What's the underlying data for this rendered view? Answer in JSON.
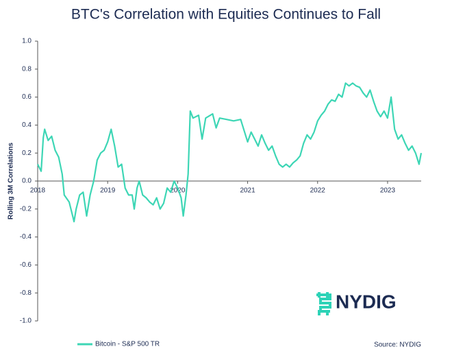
{
  "chart_data": {
    "type": "line",
    "title": "BTC's Correlation with Equities Continues to Fall",
    "y_label": "Rolling 3M Correlations",
    "source": "Source: NYDIG",
    "logo": "NYDIG",
    "x": [
      2018.0,
      2018.05,
      2018.08,
      2018.1,
      2018.15,
      2018.2,
      2018.25,
      2018.3,
      2018.35,
      2018.38,
      2018.45,
      2018.5,
      2018.52,
      2018.55,
      2018.6,
      2018.65,
      2018.7,
      2018.75,
      2018.8,
      2018.85,
      2018.9,
      2018.95,
      2019.0,
      2019.05,
      2019.1,
      2019.15,
      2019.2,
      2019.25,
      2019.3,
      2019.35,
      2019.38,
      2019.42,
      2019.45,
      2019.5,
      2019.55,
      2019.6,
      2019.65,
      2019.7,
      2019.75,
      2019.8,
      2019.85,
      2019.9,
      2019.95,
      2020.0,
      2020.05,
      2020.08,
      2020.12,
      2020.15,
      2020.18,
      2020.22,
      2020.3,
      2020.35,
      2020.4,
      2020.5,
      2020.55,
      2020.6,
      2020.7,
      2020.8,
      2020.9,
      2021.0,
      2021.05,
      2021.1,
      2021.15,
      2021.2,
      2021.25,
      2021.3,
      2021.35,
      2021.4,
      2021.45,
      2021.5,
      2021.55,
      2021.6,
      2021.65,
      2021.7,
      2021.75,
      2021.8,
      2021.85,
      2021.9,
      2021.95,
      2022.0,
      2022.05,
      2022.1,
      2022.15,
      2022.2,
      2022.25,
      2022.3,
      2022.35,
      2022.4,
      2022.45,
      2022.5,
      2022.55,
      2022.6,
      2022.65,
      2022.7,
      2022.75,
      2022.8,
      2022.85,
      2022.9,
      2022.95,
      2023.0,
      2023.05,
      2023.1,
      2023.15,
      2023.2,
      2023.25,
      2023.3,
      2023.35,
      2023.4,
      2023.45,
      2023.48
    ],
    "series": [
      {
        "name": "Bitcoin - S&P 500 TR",
        "color": "#3dd6b5",
        "values": [
          0.12,
          0.07,
          0.31,
          0.37,
          0.29,
          0.32,
          0.22,
          0.17,
          0.05,
          -0.1,
          -0.15,
          -0.25,
          -0.29,
          -0.2,
          -0.1,
          -0.08,
          -0.25,
          -0.1,
          0.0,
          0.15,
          0.2,
          0.22,
          0.28,
          0.37,
          0.25,
          0.1,
          0.12,
          -0.05,
          -0.1,
          -0.1,
          -0.2,
          -0.05,
          0.0,
          -0.1,
          -0.12,
          -0.15,
          -0.17,
          -0.12,
          -0.2,
          -0.16,
          -0.05,
          -0.08,
          0.0,
          -0.05,
          -0.12,
          -0.25,
          -0.1,
          0.05,
          0.5,
          0.45,
          0.47,
          0.3,
          0.45,
          0.48,
          0.38,
          0.45,
          0.44,
          0.43,
          0.44,
          0.28,
          0.35,
          0.3,
          0.25,
          0.33,
          0.27,
          0.22,
          0.25,
          0.18,
          0.12,
          0.1,
          0.12,
          0.1,
          0.13,
          0.15,
          0.18,
          0.27,
          0.33,
          0.3,
          0.35,
          0.43,
          0.47,
          0.5,
          0.55,
          0.58,
          0.57,
          0.62,
          0.6,
          0.7,
          0.68,
          0.7,
          0.68,
          0.67,
          0.63,
          0.6,
          0.65,
          0.57,
          0.5,
          0.46,
          0.5,
          0.45,
          0.6,
          0.37,
          0.3,
          0.33,
          0.27,
          0.22,
          0.25,
          0.2,
          0.12,
          0.2
        ]
      }
    ],
    "xlim": [
      2018,
      2023.48
    ],
    "xticks": [
      2018,
      2019,
      2020,
      2021,
      2022,
      2023
    ],
    "ylim": [
      -1,
      1
    ],
    "yticks": [
      {
        "value": -1,
        "label": "-1.0"
      },
      -0.8,
      -0.6,
      -0.4,
      -0.2,
      {
        "value": 0,
        "label": "0.0"
      },
      0.2,
      0.4,
      0.6,
      0.8,
      {
        "value": 1,
        "label": "1.0"
      }
    ],
    "grid": false
  }
}
